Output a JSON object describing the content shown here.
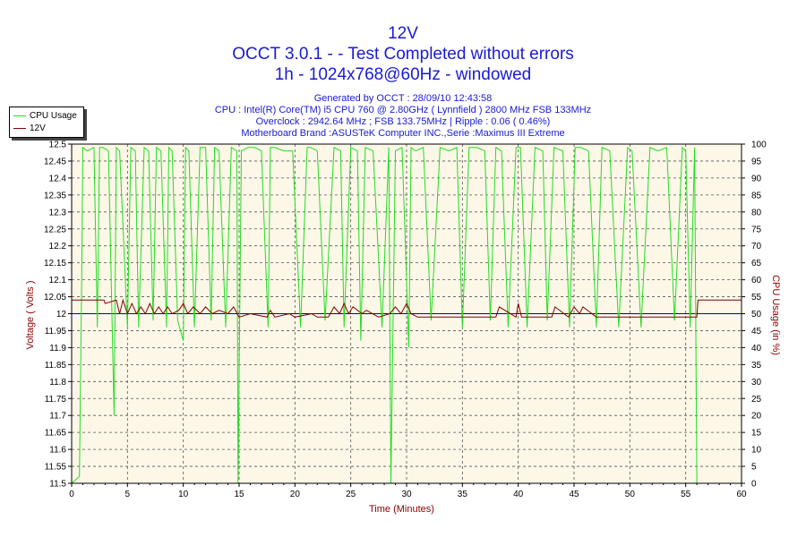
{
  "titles": {
    "line1": "12V",
    "line2": "OCCT 3.0.1 -  - Test Completed without errors",
    "line3": "1h - 1024x768@60Hz - windowed",
    "info1": "Generated by OCCT : 28/09/10 12:43:58",
    "info2": "CPU : Intel(R) Core(TM) i5 CPU 760 @ 2.80GHz ( Lynnfield ) 2800 MHz FSB 133MHz",
    "info3": "Overclock : 2942.64 MHz ; FSB 133.75MHz | Ripple : 0.06 ( 0.46%)",
    "info4": "Motherboard Brand :ASUSTeK Computer INC.,Serie :Maximus III Extreme"
  },
  "legend": {
    "cpu_label": "CPU Usage",
    "v_label": "12V"
  },
  "colors": {
    "cpu": "#22dd22",
    "voltage": "#800000",
    "reference": "#0000cc",
    "plot_bg": "#fdf7e8",
    "grid": "#555555",
    "title": "#1a1ad6",
    "axis_title": "#8b0000"
  },
  "chart_data": {
    "type": "line",
    "title": "12V",
    "xlabel": "Time (Minutes)",
    "ylabel": "Voltage ( Volts )",
    "y2label": "CPU Usage (in %)",
    "xlim": [
      0,
      60
    ],
    "ylim": [
      11.5,
      12.5
    ],
    "y2lim": [
      0,
      100
    ],
    "x_ticks": [
      "0",
      "5",
      "10",
      "15",
      "20",
      "25",
      "30",
      "35",
      "40",
      "45",
      "50",
      "55",
      "60"
    ],
    "y_ticks": [
      "11.5",
      "11.55",
      "11.6",
      "11.65",
      "11.7",
      "11.75",
      "11.8",
      "11.85",
      "11.9",
      "11.95",
      "12",
      "12.05",
      "12.1",
      "12.15",
      "12.2",
      "12.25",
      "12.3",
      "12.35",
      "12.4",
      "12.45",
      "12.5"
    ],
    "y2_ticks": [
      "0",
      "5",
      "10",
      "15",
      "20",
      "25",
      "30",
      "35",
      "40",
      "45",
      "50",
      "55",
      "60",
      "65",
      "70",
      "75",
      "80",
      "85",
      "90",
      "95",
      "100"
    ],
    "reference_line": 12.0,
    "grid": true,
    "legend_position": "top-left",
    "series": [
      {
        "name": "CPU Usage",
        "axis": "right",
        "x": [
          0,
          0.7,
          0.9,
          1.0,
          1.4,
          2.0,
          2.3,
          2.5,
          2.8,
          3.3,
          3.8,
          4.0,
          4.3,
          5.0,
          5.3,
          5.7,
          6.0,
          6.5,
          6.9,
          7.3,
          7.6,
          8.0,
          8.5,
          8.7,
          9.0,
          9.5,
          10.0,
          10.2,
          10.5,
          11.0,
          11.5,
          12.0,
          12.5,
          12.8,
          13.2,
          13.8,
          14.3,
          14.8,
          14.9,
          15.2,
          15.8,
          16.4,
          17.0,
          17.6,
          17.8,
          18.2,
          19.0,
          19.8,
          20.5,
          21.1,
          21.4,
          22.0,
          22.7,
          23.5,
          24.1,
          24.4,
          25.0,
          25.6,
          25.9,
          26.3,
          27.0,
          27.8,
          28.4,
          28.6,
          29.0,
          29.6,
          30.2,
          30.4,
          30.8,
          31.5,
          32.2,
          33.0,
          33.8,
          34.5,
          35.0,
          35.6,
          36.3,
          37.0,
          37.5,
          38.0,
          38.5,
          39.1,
          39.8,
          40.2,
          40.8,
          41.5,
          42.2,
          42.6,
          43.2,
          44.0,
          44.6,
          45.1,
          45.6,
          46.3,
          47.0,
          47.5,
          48.2,
          49.0,
          49.8,
          50.2,
          51.0,
          51.8,
          52.5,
          53.3,
          54.0,
          54.7,
          55.0,
          55.4,
          55.8,
          56.0,
          56.2,
          60
        ],
        "values": [
          0,
          2,
          60,
          99,
          98,
          99,
          46,
          99,
          99,
          98,
          20,
          99,
          98,
          46,
          99,
          98,
          46,
          99,
          98,
          48,
          99,
          98,
          46,
          99,
          98,
          48,
          42,
          99,
          98,
          46,
          99,
          99,
          48,
          99,
          98,
          46,
          99,
          98,
          0,
          98,
          99,
          99,
          98,
          46,
          99,
          99,
          98,
          98,
          46,
          99,
          99,
          98,
          48,
          99,
          98,
          46,
          99,
          98,
          42,
          99,
          98,
          46,
          99,
          0,
          98,
          99,
          40,
          99,
          98,
          99,
          48,
          99,
          98,
          99,
          46,
          99,
          99,
          98,
          48,
          99,
          98,
          46,
          99,
          99,
          46,
          99,
          98,
          48,
          99,
          98,
          46,
          99,
          99,
          98,
          46,
          99,
          98,
          46,
          99,
          98,
          46,
          99,
          98,
          99,
          48,
          99,
          98,
          46,
          99,
          0,
          0,
          0
        ]
      },
      {
        "name": "12V",
        "axis": "left",
        "x": [
          0,
          2.9,
          3.0,
          4.0,
          4.3,
          4.6,
          5.0,
          5.4,
          5.8,
          6.2,
          6.6,
          7.0,
          7.4,
          7.8,
          8.2,
          8.6,
          9.0,
          9.6,
          10.0,
          10.4,
          10.9,
          11.5,
          12.0,
          12.6,
          13.2,
          14.0,
          14.5,
          15.0,
          16.0,
          17.5,
          17.8,
          18.2,
          19.5,
          20.0,
          21.5,
          22.0,
          23.0,
          23.5,
          24.0,
          24.4,
          24.8,
          25.2,
          26.0,
          26.4,
          27.5,
          28.5,
          29.0,
          29.5,
          30.0,
          30.4,
          31.0,
          32.0,
          34.0,
          36.0,
          38.0,
          38.3,
          39.8,
          40.0,
          40.3,
          42.0,
          43.0,
          43.3,
          44.5,
          45.0,
          45.5,
          45.8,
          47.0,
          50.0,
          53.0,
          55.0,
          56.0,
          56.1,
          60
        ],
        "values": [
          12.04,
          12.04,
          12.03,
          12.04,
          12.0,
          12.04,
          12.0,
          12.03,
          12.0,
          12.02,
          12.0,
          12.03,
          12.0,
          12.02,
          12.0,
          12.02,
          12.0,
          12.01,
          12.03,
          12.0,
          12.02,
          12.0,
          12.02,
          12.0,
          12.01,
          12.0,
          12.02,
          11.99,
          12.0,
          11.99,
          12.01,
          11.99,
          12.0,
          11.99,
          12.0,
          11.99,
          11.99,
          12.02,
          12.0,
          12.03,
          12.0,
          12.02,
          12.0,
          12.01,
          11.99,
          12.0,
          12.02,
          12.0,
          12.03,
          12.0,
          11.99,
          11.99,
          11.99,
          11.99,
          11.99,
          12.02,
          11.99,
          12.03,
          11.99,
          11.99,
          11.99,
          12.02,
          11.99,
          12.02,
          12.0,
          12.02,
          11.99,
          11.99,
          11.99,
          11.99,
          11.99,
          12.04,
          12.04
        ]
      }
    ]
  }
}
